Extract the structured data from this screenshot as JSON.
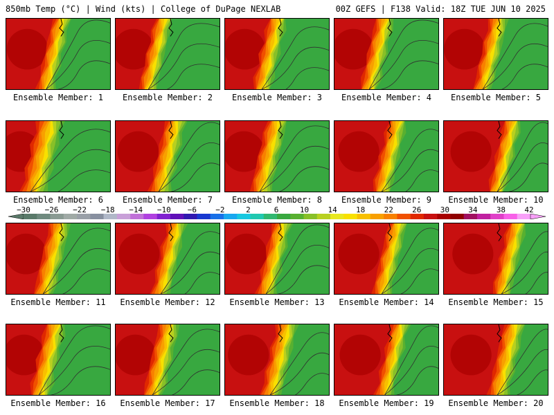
{
  "header": {
    "left": "850mb Temp (°C) | Wind (kts) | College of DuPage NEXLAB",
    "right": "00Z GEFS | F138 Valid: 18Z TUE JUN 10 2025"
  },
  "colorbar": {
    "labels": [
      "-30",
      "-26",
      "-22",
      "-18",
      "-14",
      "-10",
      "-6",
      "-2",
      "2",
      "6",
      "10",
      "14",
      "18",
      "22",
      "26",
      "30",
      "34",
      "38",
      "42"
    ],
    "colors": [
      "#5a7a6a",
      "#6f8a7f",
      "#8a9a93",
      "#a0aaa6",
      "#9aa0a8",
      "#8890a0",
      "#b0b8c8",
      "#c8a0d8",
      "#c070d8",
      "#b040e0",
      "#8020d0",
      "#6010b8",
      "#3018b0",
      "#1838d0",
      "#1870e8",
      "#18a8f0",
      "#18c8e0",
      "#20c8b0",
      "#30b870",
      "#38a840",
      "#58b030",
      "#88c028",
      "#b8d020",
      "#e8e820",
      "#f8e000",
      "#f8c000",
      "#f8a000",
      "#f88000",
      "#f05000",
      "#e02800",
      "#c81010",
      "#a80000",
      "#900000",
      "#a01060",
      "#c020a0",
      "#e040c8",
      "#f860e8",
      "#f8a0f8"
    ]
  },
  "members": [
    {
      "label": "Ensemble Member: 1",
      "lon": [
        0.45,
        0.62
      ]
    },
    {
      "label": "Ensemble Member: 2",
      "lon": [
        0.38,
        0.55
      ]
    },
    {
      "label": "Ensemble Member: 3",
      "lon": [
        0.42,
        0.6
      ]
    },
    {
      "label": "Ensemble Member: 4",
      "lon": [
        0.4,
        0.58
      ]
    },
    {
      "label": "Ensemble Member: 5",
      "lon": [
        0.44,
        0.62
      ]
    },
    {
      "label": "Ensemble Member: 6",
      "lon": [
        0.3,
        0.55
      ]
    },
    {
      "label": "Ensemble Member: 7",
      "lon": [
        0.48,
        0.68
      ]
    },
    {
      "label": "Ensemble Member: 8",
      "lon": [
        0.4,
        0.6
      ]
    },
    {
      "label": "Ensemble Member: 9",
      "lon": [
        0.52,
        0.7
      ]
    },
    {
      "label": "Ensemble Member: 10",
      "lon": [
        0.58,
        0.75
      ]
    },
    {
      "label": "Ensemble Member: 11",
      "lon": [
        0.42,
        0.62
      ]
    },
    {
      "label": "Ensemble Member: 12",
      "lon": [
        0.5,
        0.68
      ]
    },
    {
      "label": "Ensemble Member: 13",
      "lon": [
        0.46,
        0.64
      ]
    },
    {
      "label": "Ensemble Member: 14",
      "lon": [
        0.52,
        0.7
      ]
    },
    {
      "label": "Ensemble Member: 15",
      "lon": [
        0.62,
        0.8
      ]
    },
    {
      "label": "Ensemble Member: 16",
      "lon": [
        0.38,
        0.58
      ]
    },
    {
      "label": "Ensemble Member: 17",
      "lon": [
        0.42,
        0.62
      ]
    },
    {
      "label": "Ensemble Member: 18",
      "lon": [
        0.5,
        0.7
      ]
    },
    {
      "label": "Ensemble Member: 19",
      "lon": [
        0.55,
        0.72
      ]
    },
    {
      "label": "Ensemble Member: 20",
      "lon": [
        0.58,
        0.78
      ]
    }
  ]
}
